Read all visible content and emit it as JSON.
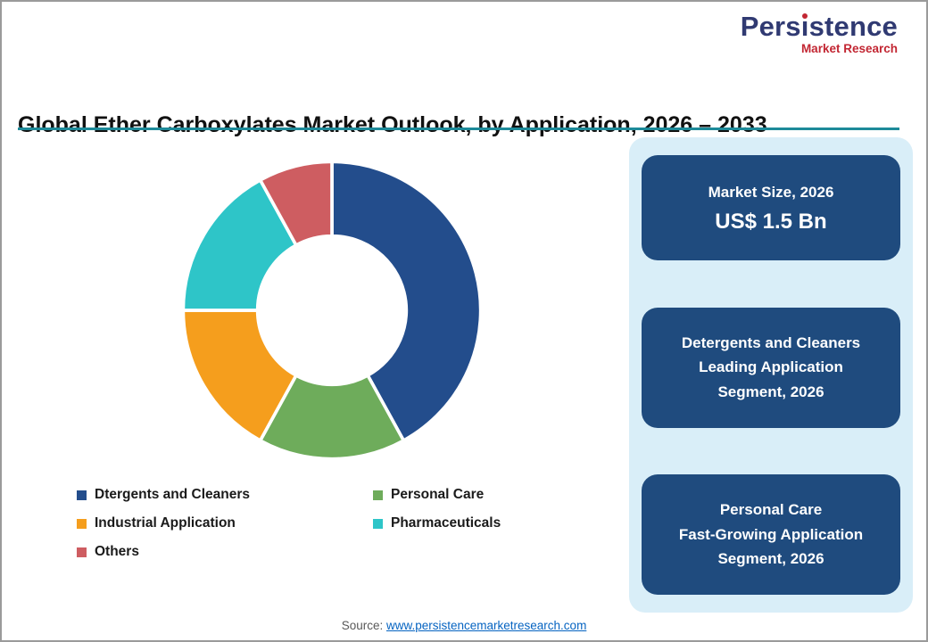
{
  "logo": {
    "name": "Persistence",
    "tagline": "Market Research"
  },
  "header": {
    "title": "Global Ether Carboxylates Market Outlook, by Application, 2026 – 2033"
  },
  "chart_data": {
    "type": "pie",
    "donut": true,
    "inner_radius_ratio": 0.5,
    "start_angle_deg": 0,
    "direction": "clockwise",
    "title": "Global Ether Carboxylates Market Outlook, by Application, 2026 – 2033",
    "labels": [
      "Dtergents and Cleaners",
      "Personal Care",
      "Industrial Application",
      "Pharmaceuticals",
      "Others"
    ],
    "values": [
      42,
      16,
      17,
      17,
      8
    ],
    "unit": "% share (estimated from arc angles)",
    "colors": [
      "#234D8C",
      "#6EAC5B",
      "#F59E1D",
      "#2EC5C8",
      "#CE5D61"
    ],
    "legend_position": "bottom-left",
    "slice_separator": "#ffffff"
  },
  "panel": {
    "boxes": [
      {
        "lines": [
          "Market Size, 2026",
          "US$ 1.5 Bn"
        ]
      },
      {
        "lines": [
          "Detergents and Cleaners",
          "Leading Application",
          "Segment, 2026"
        ]
      },
      {
        "lines": [
          "Personal Care",
          "Fast-Growing Application",
          "Segment, 2026"
        ]
      }
    ]
  },
  "footer": {
    "source_label": "Source:",
    "source_link": "www.persistencemarketresearch.com"
  },
  "colors": {
    "brand_navy": "#303A72",
    "brand_red": "#C22632",
    "title_underline": "#1D8A99",
    "panel_bg": "#D9EEF8",
    "box_bg": "#1F4B7E",
    "link": "#0563C1"
  }
}
